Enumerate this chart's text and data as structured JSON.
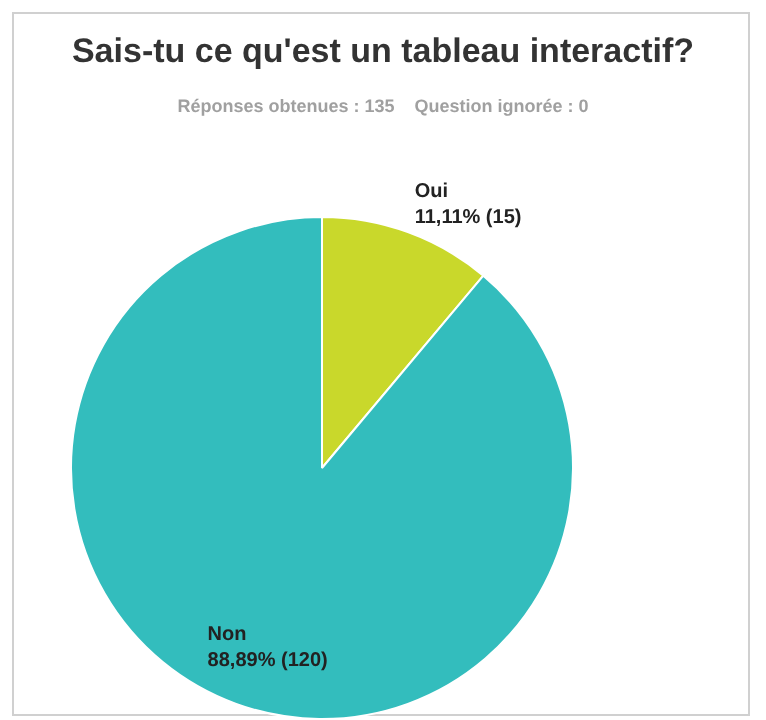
{
  "chart_data": {
    "type": "pie",
    "title": "Sais-tu ce qu'est un tableau interactif?",
    "subtitle": "Réponses obtenues : 135    Question ignorée : 0",
    "categories": [
      "Oui",
      "Non"
    ],
    "values": [
      15,
      120
    ],
    "colors": [
      "#c9d82b",
      "#33bdbd"
    ],
    "value_labels": [
      "11,11% (15)",
      "88,89% (120)"
    ],
    "legend": false
  }
}
